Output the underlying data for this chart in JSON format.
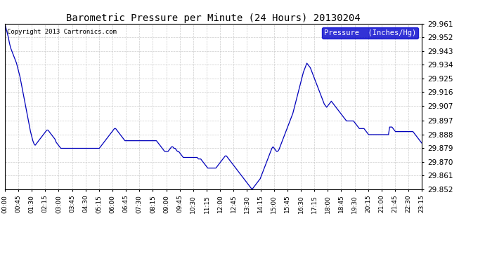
{
  "title": "Barometric Pressure per Minute (24 Hours) 20130204",
  "copyright": "Copyright 2013 Cartronics.com",
  "legend_label": "Pressure  (Inches/Hg)",
  "bg_color": "#ffffff",
  "plot_bg_color": "#ffffff",
  "line_color": "#0000bb",
  "grid_color": "#cccccc",
  "legend_bg": "#0000cc",
  "legend_text_color": "#ffffff",
  "y_min": 29.852,
  "y_max": 29.961,
  "y_ticks": [
    29.852,
    29.861,
    29.87,
    29.879,
    29.888,
    29.897,
    29.907,
    29.916,
    29.925,
    29.934,
    29.943,
    29.952,
    29.961
  ],
  "x_tick_labels": [
    "00:00",
    "00:45",
    "01:30",
    "02:15",
    "03:00",
    "03:45",
    "04:30",
    "05:15",
    "06:00",
    "06:45",
    "07:30",
    "08:15",
    "09:00",
    "09:45",
    "10:30",
    "11:15",
    "12:00",
    "12:45",
    "13:30",
    "14:15",
    "15:00",
    "15:45",
    "16:30",
    "17:15",
    "18:00",
    "18:45",
    "19:30",
    "20:15",
    "21:00",
    "21:45",
    "22:30",
    "23:15"
  ],
  "pressure_data": [
    29.961,
    29.958,
    29.955,
    29.952,
    29.948,
    29.945,
    29.943,
    29.941,
    29.939,
    29.937,
    29.935,
    29.932,
    29.929,
    29.926,
    29.922,
    29.918,
    29.914,
    29.91,
    29.906,
    29.902,
    29.898,
    29.894,
    29.89,
    29.887,
    29.884,
    29.882,
    29.881,
    29.882,
    29.883,
    29.884,
    29.885,
    29.886,
    29.887,
    29.888,
    29.889,
    29.89,
    29.891,
    29.891,
    29.89,
    29.889,
    29.888,
    29.887,
    29.886,
    29.885,
    29.883,
    29.882,
    29.881,
    29.88,
    29.879,
    29.879,
    29.879,
    29.879,
    29.879,
    29.879,
    29.879,
    29.879,
    29.879,
    29.879,
    29.879,
    29.879,
    29.879,
    29.879,
    29.879,
    29.879,
    29.879,
    29.879,
    29.879,
    29.879,
    29.879,
    29.879,
    29.879,
    29.879,
    29.879,
    29.879,
    29.879,
    29.879,
    29.879,
    29.879,
    29.879,
    29.879,
    29.879,
    29.879,
    29.88,
    29.881,
    29.882,
    29.883,
    29.884,
    29.885,
    29.886,
    29.887,
    29.888,
    29.889,
    29.89,
    29.891,
    29.892,
    29.892,
    29.891,
    29.89,
    29.889,
    29.888,
    29.887,
    29.886,
    29.885,
    29.884,
    29.884,
    29.884,
    29.884,
    29.884,
    29.884,
    29.884,
    29.884,
    29.884,
    29.884,
    29.884,
    29.884,
    29.884,
    29.884,
    29.884,
    29.884,
    29.884,
    29.884,
    29.884,
    29.884,
    29.884,
    29.884,
    29.884,
    29.884,
    29.884,
    29.884,
    29.884,
    29.884,
    29.883,
    29.882,
    29.881,
    29.88,
    29.879,
    29.878,
    29.877,
    29.877,
    29.877,
    29.877,
    29.878,
    29.879,
    29.88,
    29.88,
    29.879,
    29.879,
    29.878,
    29.877,
    29.877,
    29.876,
    29.875,
    29.874,
    29.873,
    29.873,
    29.873,
    29.873,
    29.873,
    29.873,
    29.873,
    29.873,
    29.873,
    29.873,
    29.873,
    29.873,
    29.873,
    29.872,
    29.872,
    29.872,
    29.871,
    29.87,
    29.869,
    29.868,
    29.867,
    29.866,
    29.866,
    29.866,
    29.866,
    29.866,
    29.866,
    29.866,
    29.866,
    29.867,
    29.868,
    29.869,
    29.87,
    29.871,
    29.872,
    29.873,
    29.874,
    29.874,
    29.873,
    29.872,
    29.871,
    29.87,
    29.869,
    29.868,
    29.867,
    29.866,
    29.865,
    29.864,
    29.863,
    29.862,
    29.861,
    29.86,
    29.859,
    29.858,
    29.857,
    29.856,
    29.855,
    29.854,
    29.853,
    29.852,
    29.853,
    29.854,
    29.855,
    29.856,
    29.857,
    29.858,
    29.859,
    29.861,
    29.863,
    29.865,
    29.867,
    29.869,
    29.871,
    29.873,
    29.875,
    29.877,
    29.879,
    29.88,
    29.879,
    29.878,
    29.877,
    29.877,
    29.878,
    29.88,
    29.882,
    29.884,
    29.886,
    29.888,
    29.89,
    29.892,
    29.894,
    29.896,
    29.898,
    29.9,
    29.902,
    29.905,
    29.908,
    29.911,
    29.914,
    29.917,
    29.92,
    29.923,
    29.926,
    29.929,
    29.931,
    29.933,
    29.935,
    29.934,
    29.933,
    29.932,
    29.93,
    29.928,
    29.926,
    29.924,
    29.922,
    29.92,
    29.918,
    29.916,
    29.914,
    29.912,
    29.91,
    29.908,
    29.907,
    29.906,
    29.907,
    29.908,
    29.909,
    29.91,
    29.909,
    29.908,
    29.907,
    29.906,
    29.905,
    29.904,
    29.903,
    29.902,
    29.901,
    29.9,
    29.899,
    29.898,
    29.897,
    29.897,
    29.897,
    29.897,
    29.897,
    29.897,
    29.897,
    29.896,
    29.895,
    29.894,
    29.893,
    29.892,
    29.892,
    29.892,
    29.892,
    29.892,
    29.891,
    29.89,
    29.889,
    29.888,
    29.888,
    29.888,
    29.888,
    29.888,
    29.888,
    29.888,
    29.888,
    29.888,
    29.888,
    29.888,
    29.888,
    29.888,
    29.888,
    29.888,
    29.888,
    29.888,
    29.888,
    29.893,
    29.893,
    29.893,
    29.892,
    29.891,
    29.89,
    29.89,
    29.89,
    29.89,
    29.89,
    29.89,
    29.89,
    29.89,
    29.89,
    29.89,
    29.89,
    29.89,
    29.89,
    29.89,
    29.89,
    29.89,
    29.889,
    29.888,
    29.887,
    29.886,
    29.885,
    29.884,
    29.883,
    29.882,
    29.882,
    29.882,
    29.882,
    29.882,
    29.882,
    29.882,
    29.882,
    29.882,
    29.882,
    29.882,
    29.893
  ]
}
